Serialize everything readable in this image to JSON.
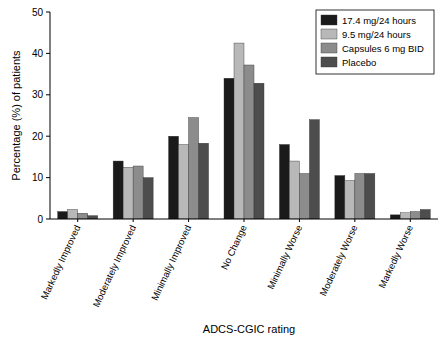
{
  "chart_data": {
    "type": "bar",
    "categories": [
      "Markedly Improved",
      "Moderately Improved",
      "Minimally Improved",
      "No Change",
      "Minimally Worse",
      "Moderately Worse",
      "Markedly Worse"
    ],
    "series": [
      {
        "name": "17.4 mg/24 hours",
        "color": "#1a1a1a",
        "values": [
          1.8,
          14,
          20,
          34,
          18,
          10.5,
          1
        ]
      },
      {
        "name": "9.5 mg/24 hours",
        "color": "#b8b8b8",
        "values": [
          2.3,
          12.5,
          18,
          42.5,
          14,
          9.3,
          1.5
        ]
      },
      {
        "name": "Capsules 6 mg BID",
        "color": "#8c8c8c",
        "values": [
          1.4,
          12.8,
          24.5,
          37.2,
          11,
          11,
          1.8
        ]
      },
      {
        "name": "Placebo",
        "color": "#4d4d4d",
        "values": [
          0.8,
          10,
          18.3,
          32.8,
          24,
          11,
          2.3
        ]
      }
    ],
    "x_label": "ADCS-CGIC rating",
    "y_label": "Percentage (%) of patients",
    "ylim": [
      0,
      50
    ],
    "yticks": [
      0,
      10,
      20,
      30,
      40,
      50
    ],
    "grid": false,
    "legend": "top-right"
  }
}
